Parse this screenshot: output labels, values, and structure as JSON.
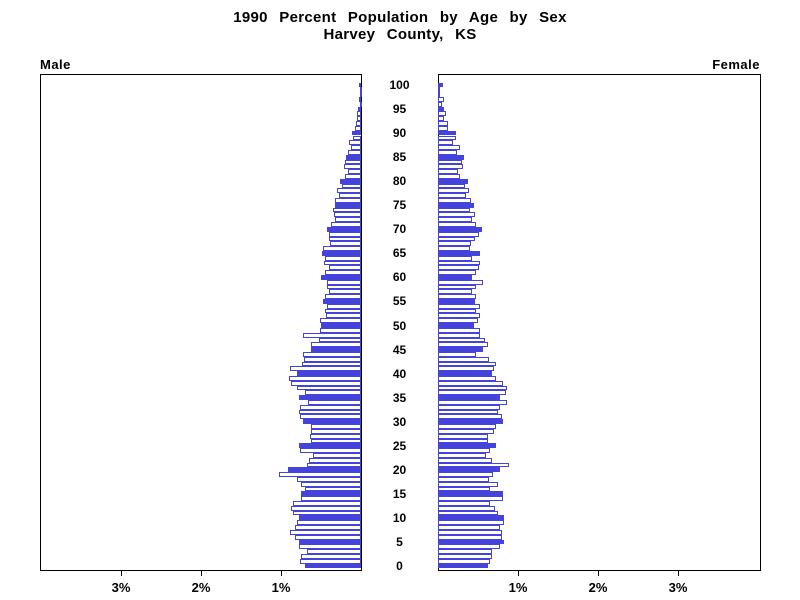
{
  "title": {
    "line1": "1990 Percent Population by Age by Sex",
    "line2": "Harvey County, KS"
  },
  "panels": {
    "male_label": "Male",
    "female_label": "Female"
  },
  "axis": {
    "age_labels": [
      0,
      5,
      10,
      15,
      20,
      25,
      30,
      35,
      40,
      45,
      50,
      55,
      60,
      65,
      70,
      75,
      80,
      85,
      90,
      95,
      100
    ],
    "male_pct_ticks": [
      {
        "value": 3,
        "label": "3%"
      },
      {
        "value": 2,
        "label": "2%"
      },
      {
        "value": 1,
        "label": "1%"
      }
    ],
    "female_pct_ticks": [
      {
        "value": 1,
        "label": "1%"
      },
      {
        "value": 2,
        "label": "2%"
      },
      {
        "value": 3,
        "label": "3%"
      }
    ]
  },
  "colors": {
    "bar_blue": "#4444dd",
    "axis_black": "#000000",
    "background": "#ffffff"
  },
  "chart_data": {
    "type": "bar",
    "subtype": "population-pyramid",
    "title": "1990 Percent Population by Age by Sex",
    "subtitle": "Harvey County, KS",
    "orientation": "horizontal, male bars extend left from center, female bars extend right",
    "y_axis": "single year of age, 0 at bottom to 100 at top, labeled every 5 years",
    "x_axis": "percent of population, 0 at center to 4% at outer edges, ticks at 1%, 2%, 3%",
    "xlim_each_side": [
      0,
      4
    ],
    "x_unit": "%",
    "age_range": [
      0,
      100
    ],
    "age_step": 1,
    "style_rule": "bars for ages divisible by 5 are solid blue; all other ages are white with blue outline",
    "grid": false,
    "legend": false,
    "series": [
      {
        "name": "Male",
        "values_pct_by_age_0_to_100": [
          0.7,
          0.76,
          0.75,
          0.67,
          0.77,
          0.77,
          0.82,
          0.89,
          0.82,
          0.8,
          0.78,
          0.85,
          0.87,
          0.85,
          0.75,
          0.75,
          0.7,
          0.75,
          0.8,
          1.03,
          0.91,
          0.67,
          0.65,
          0.6,
          0.76,
          0.77,
          0.62,
          0.64,
          0.63,
          0.63,
          0.72,
          0.76,
          0.77,
          0.76,
          0.66,
          0.77,
          0.7,
          0.8,
          0.87,
          0.9,
          0.8,
          0.89,
          0.74,
          0.71,
          0.72,
          0.63,
          0.62,
          0.52,
          0.72,
          0.51,
          0.5,
          0.51,
          0.44,
          0.45,
          0.43,
          0.48,
          0.45,
          0.4,
          0.43,
          0.43,
          0.5,
          0.45,
          0.4,
          0.46,
          0.45,
          0.49,
          0.47,
          0.39,
          0.4,
          0.4,
          0.43,
          0.37,
          0.33,
          0.34,
          0.35,
          0.32,
          0.33,
          0.27,
          0.3,
          0.24,
          0.26,
          0.2,
          0.16,
          0.21,
          0.2,
          0.19,
          0.16,
          0.12,
          0.15,
          0.1,
          0.11,
          0.075,
          0.06,
          0.05,
          0.05,
          0.04,
          0.015,
          0.02,
          0.015,
          0.01,
          0.025
        ]
      },
      {
        "name": "Female",
        "values_pct_by_age_0_to_100": [
          0.63,
          0.65,
          0.67,
          0.67,
          0.78,
          0.82,
          0.8,
          0.8,
          0.78,
          0.83,
          0.83,
          0.75,
          0.71,
          0.65,
          0.81,
          0.81,
          0.65,
          0.75,
          0.64,
          0.69,
          0.77,
          0.89,
          0.67,
          0.6,
          0.65,
          0.72,
          0.63,
          0.63,
          0.7,
          0.72,
          0.81,
          0.8,
          0.75,
          0.78,
          0.86,
          0.78,
          0.85,
          0.86,
          0.81,
          0.73,
          0.67,
          0.7,
          0.72,
          0.64,
          0.48,
          0.56,
          0.63,
          0.59,
          0.53,
          0.52,
          0.45,
          0.5,
          0.53,
          0.48,
          0.53,
          0.46,
          0.48,
          0.43,
          0.48,
          0.56,
          0.43,
          0.48,
          0.51,
          0.53,
          0.42,
          0.525,
          0.4,
          0.41,
          0.46,
          0.51,
          0.55,
          0.48,
          0.43,
          0.46,
          0.4,
          0.45,
          0.41,
          0.35,
          0.39,
          0.34,
          0.37,
          0.28,
          0.25,
          0.31,
          0.3,
          0.325,
          0.24,
          0.27,
          0.19,
          0.23,
          0.22,
          0.12,
          0.12,
          0.08,
          0.1,
          0.075,
          0.05,
          0.07,
          0.03,
          0.02,
          0.06
        ]
      }
    ]
  }
}
